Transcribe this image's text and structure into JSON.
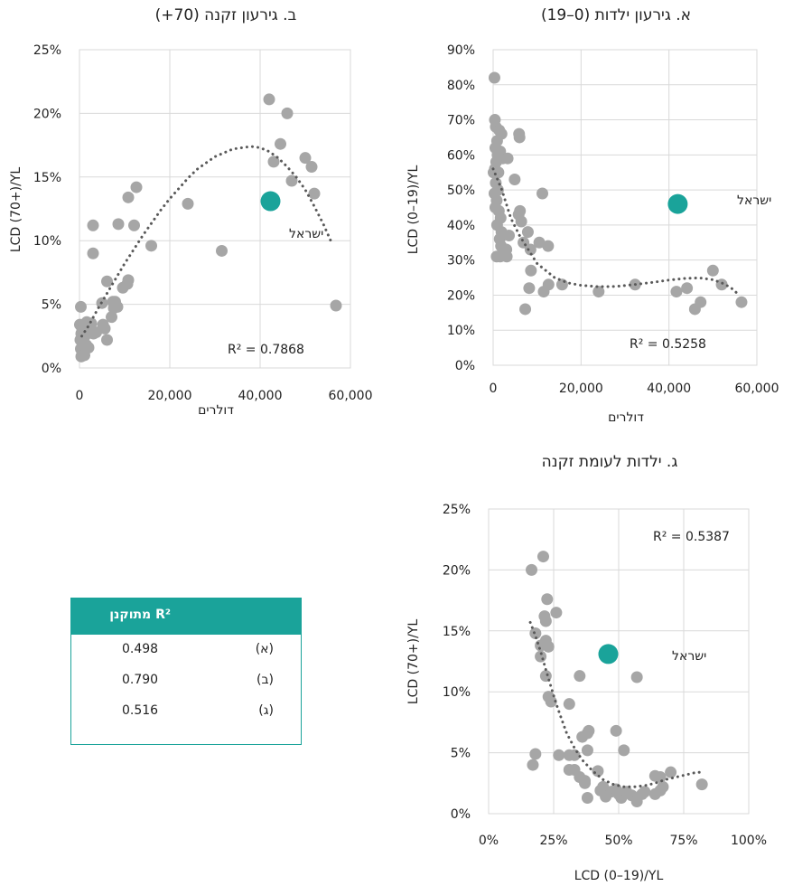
{
  "colors": {
    "points": "#a6a6a6",
    "highlight": "#1aa39a",
    "trend": "#595959",
    "grid": "#d9d9d9"
  },
  "chart_data": [
    {
      "id": "a",
      "type": "scatter",
      "title": "א. גירעון ילדות (0–19)",
      "xlabel": "דולרים",
      "ylabel": "LCD (0–19)/YL",
      "xlim": [
        0,
        60000
      ],
      "ylim": [
        0,
        0.9
      ],
      "xticks": [
        "0",
        "20,000",
        "40,000",
        "60,000"
      ],
      "yticks": [
        "0%",
        "10%",
        "20%",
        "30%",
        "40%",
        "50%",
        "60%",
        "70%",
        "80%",
        "90%"
      ],
      "grid": true,
      "r2_label": "R² = 0.5258",
      "highlight": {
        "label": "ישראל",
        "x": 42000,
        "y": 0.46
      },
      "points": [
        [
          300,
          0.82
        ],
        [
          400,
          0.7
        ],
        [
          600,
          0.68
        ],
        [
          900,
          0.64
        ],
        [
          1400,
          0.67
        ],
        [
          1900,
          0.66
        ],
        [
          500,
          0.62
        ],
        [
          1000,
          0.6
        ],
        [
          1600,
          0.61
        ],
        [
          2200,
          0.59
        ],
        [
          700,
          0.58
        ],
        [
          400,
          0.56
        ],
        [
          100,
          0.55
        ],
        [
          1200,
          0.55
        ],
        [
          3300,
          0.59
        ],
        [
          600,
          0.52
        ],
        [
          1100,
          0.5
        ],
        [
          300,
          0.49
        ],
        [
          800,
          0.47
        ],
        [
          500,
          0.45
        ],
        [
          1300,
          0.44
        ],
        [
          1700,
          0.42
        ],
        [
          900,
          0.4
        ],
        [
          1900,
          0.38
        ],
        [
          1500,
          0.36
        ],
        [
          3600,
          0.37
        ],
        [
          5800,
          0.43
        ],
        [
          6100,
          0.44
        ],
        [
          4900,
          0.53
        ],
        [
          5900,
          0.66
        ],
        [
          6000,
          0.65
        ],
        [
          6900,
          0.35
        ],
        [
          6400,
          0.41
        ],
        [
          7900,
          0.38
        ],
        [
          8500,
          0.33
        ],
        [
          10500,
          0.35
        ],
        [
          12500,
          0.34
        ],
        [
          11200,
          0.49
        ],
        [
          3000,
          0.33
        ],
        [
          1800,
          0.34
        ],
        [
          800,
          0.31
        ],
        [
          1600,
          0.31
        ],
        [
          3100,
          0.31
        ],
        [
          8600,
          0.27
        ],
        [
          8200,
          0.22
        ],
        [
          7300,
          0.16
        ],
        [
          11500,
          0.21
        ],
        [
          12600,
          0.23
        ],
        [
          15700,
          0.23
        ],
        [
          24000,
          0.21
        ],
        [
          32300,
          0.23
        ],
        [
          41700,
          0.21
        ],
        [
          44100,
          0.22
        ],
        [
          47200,
          0.18
        ],
        [
          45900,
          0.16
        ],
        [
          50000,
          0.27
        ],
        [
          52000,
          0.23
        ],
        [
          56500,
          0.18
        ]
      ],
      "trendline": [
        [
          0,
          0.56
        ],
        [
          2000,
          0.5
        ],
        [
          4000,
          0.42
        ],
        [
          6000,
          0.37
        ],
        [
          8000,
          0.33
        ],
        [
          10000,
          0.29
        ],
        [
          12000,
          0.27
        ],
        [
          14000,
          0.25
        ],
        [
          17000,
          0.235
        ],
        [
          20000,
          0.228
        ],
        [
          24000,
          0.224
        ],
        [
          28000,
          0.225
        ],
        [
          32000,
          0.23
        ],
        [
          36000,
          0.236
        ],
        [
          40000,
          0.243
        ],
        [
          44000,
          0.248
        ],
        [
          47000,
          0.249
        ],
        [
          50000,
          0.244
        ],
        [
          52000,
          0.235
        ],
        [
          54000,
          0.222
        ],
        [
          56000,
          0.2
        ]
      ]
    },
    {
      "id": "b",
      "type": "scatter",
      "title": "ב. גירעון זקנה (70+)",
      "xlabel": "דולרים",
      "ylabel": "LCD (70+)/YL",
      "xlim": [
        0,
        60000
      ],
      "ylim": [
        0,
        0.25
      ],
      "xticks": [
        "0",
        "20,000",
        "40,000",
        "60,000"
      ],
      "yticks": [
        "0%",
        "5%",
        "10%",
        "15%",
        "20%",
        "25%"
      ],
      "grid": true,
      "r2_label": "R² = 0.7868",
      "highlight": {
        "label": "ישראל",
        "x": 42300,
        "y": 0.131
      },
      "points": [
        [
          300,
          0.048
        ],
        [
          100,
          0.034
        ],
        [
          600,
          0.03
        ],
        [
          1000,
          0.032
        ],
        [
          400,
          0.027
        ],
        [
          1200,
          0.025
        ],
        [
          200,
          0.022
        ],
        [
          700,
          0.019
        ],
        [
          1500,
          0.018
        ],
        [
          2000,
          0.016
        ],
        [
          300,
          0.015
        ],
        [
          600,
          0.013
        ],
        [
          1100,
          0.01
        ],
        [
          400,
          0.009
        ],
        [
          1600,
          0.036
        ],
        [
          1900,
          0.031
        ],
        [
          2600,
          0.035
        ],
        [
          3100,
          0.027
        ],
        [
          3700,
          0.028
        ],
        [
          5000,
          0.051
        ],
        [
          5200,
          0.034
        ],
        [
          5600,
          0.031
        ],
        [
          6100,
          0.022
        ],
        [
          6100,
          0.068
        ],
        [
          7100,
          0.04
        ],
        [
          7400,
          0.052
        ],
        [
          7600,
          0.047
        ],
        [
          7900,
          0.052
        ],
        [
          8400,
          0.048
        ],
        [
          9600,
          0.063
        ],
        [
          10600,
          0.066
        ],
        [
          10800,
          0.069
        ],
        [
          3000,
          0.112
        ],
        [
          3000,
          0.09
        ],
        [
          8600,
          0.113
        ],
        [
          10800,
          0.134
        ],
        [
          12100,
          0.112
        ],
        [
          12600,
          0.142
        ],
        [
          15900,
          0.096
        ],
        [
          24000,
          0.129
        ],
        [
          31500,
          0.092
        ],
        [
          42000,
          0.211
        ],
        [
          43000,
          0.162
        ],
        [
          44500,
          0.176
        ],
        [
          46000,
          0.2
        ],
        [
          47000,
          0.147
        ],
        [
          50000,
          0.165
        ],
        [
          51400,
          0.158
        ],
        [
          52000,
          0.137
        ],
        [
          56800,
          0.049
        ]
      ],
      "trendline": [
        [
          500,
          0.025
        ],
        [
          2000,
          0.033
        ],
        [
          4000,
          0.046
        ],
        [
          6000,
          0.058
        ],
        [
          8000,
          0.07
        ],
        [
          10000,
          0.082
        ],
        [
          12000,
          0.093
        ],
        [
          14000,
          0.104
        ],
        [
          16000,
          0.114
        ],
        [
          18000,
          0.124
        ],
        [
          20000,
          0.133
        ],
        [
          22000,
          0.141
        ],
        [
          24000,
          0.149
        ],
        [
          26000,
          0.156
        ],
        [
          28000,
          0.161
        ],
        [
          30000,
          0.166
        ],
        [
          32000,
          0.169
        ],
        [
          34000,
          0.172
        ],
        [
          36000,
          0.173
        ],
        [
          38000,
          0.174
        ],
        [
          40000,
          0.173
        ],
        [
          42000,
          0.17
        ],
        [
          44000,
          0.165
        ],
        [
          46000,
          0.158
        ],
        [
          48000,
          0.15
        ],
        [
          50000,
          0.14
        ],
        [
          52000,
          0.127
        ],
        [
          54000,
          0.113
        ],
        [
          56000,
          0.097
        ]
      ]
    },
    {
      "id": "c",
      "type": "scatter",
      "title": "ג. ילדות לעומת זקנה",
      "xlabel": "LCD (0–19)/YL",
      "ylabel": "LCD (70+)/YL",
      "xlim": [
        0,
        1
      ],
      "ylim": [
        0,
        0.25
      ],
      "xticks": [
        "0%",
        "25%",
        "50%",
        "75%",
        "100%"
      ],
      "yticks": [
        "0%",
        "5%",
        "10%",
        "15%",
        "20%",
        "25%"
      ],
      "grid": true,
      "r2_label": "R² = 0.5387",
      "highlight": {
        "label": "ישראל",
        "x": 0.46,
        "y": 0.131
      },
      "points": [
        [
          0.165,
          0.2
        ],
        [
          0.21,
          0.211
        ],
        [
          0.215,
          0.162
        ],
        [
          0.22,
          0.158
        ],
        [
          0.225,
          0.176
        ],
        [
          0.26,
          0.165
        ],
        [
          0.18,
          0.148
        ],
        [
          0.2,
          0.138
        ],
        [
          0.2,
          0.129
        ],
        [
          0.22,
          0.142
        ],
        [
          0.23,
          0.137
        ],
        [
          0.22,
          0.113
        ],
        [
          0.23,
          0.096
        ],
        [
          0.24,
          0.092
        ],
        [
          0.18,
          0.049
        ],
        [
          0.17,
          0.04
        ],
        [
          0.27,
          0.048
        ],
        [
          0.31,
          0.048
        ],
        [
          0.33,
          0.048
        ],
        [
          0.35,
          0.113
        ],
        [
          0.31,
          0.09
        ],
        [
          0.36,
          0.063
        ],
        [
          0.38,
          0.066
        ],
        [
          0.385,
          0.068
        ],
        [
          0.49,
          0.068
        ],
        [
          0.38,
          0.052
        ],
        [
          0.52,
          0.052
        ],
        [
          0.57,
          0.112
        ],
        [
          0.31,
          0.036
        ],
        [
          0.33,
          0.036
        ],
        [
          0.35,
          0.03
        ],
        [
          0.37,
          0.027
        ],
        [
          0.37,
          0.025
        ],
        [
          0.42,
          0.035
        ],
        [
          0.44,
          0.022
        ],
        [
          0.43,
          0.019
        ],
        [
          0.47,
          0.018
        ],
        [
          0.49,
          0.02
        ],
        [
          0.5,
          0.016
        ],
        [
          0.51,
          0.013
        ],
        [
          0.53,
          0.018
        ],
        [
          0.55,
          0.015
        ],
        [
          0.57,
          0.01
        ],
        [
          0.59,
          0.016
        ],
        [
          0.6,
          0.018
        ],
        [
          0.64,
          0.016
        ],
        [
          0.66,
          0.019
        ],
        [
          0.67,
          0.022
        ],
        [
          0.64,
          0.031
        ],
        [
          0.66,
          0.03
        ],
        [
          0.7,
          0.034
        ],
        [
          0.82,
          0.024
        ],
        [
          0.38,
          0.013
        ],
        [
          0.45,
          0.014
        ]
      ],
      "trendline": [
        [
          0.16,
          0.157
        ],
        [
          0.18,
          0.146
        ],
        [
          0.2,
          0.133
        ],
        [
          0.22,
          0.118
        ],
        [
          0.24,
          0.104
        ],
        [
          0.26,
          0.09
        ],
        [
          0.28,
          0.078
        ],
        [
          0.3,
          0.066
        ],
        [
          0.33,
          0.054
        ],
        [
          0.36,
          0.044
        ],
        [
          0.4,
          0.035
        ],
        [
          0.44,
          0.028
        ],
        [
          0.48,
          0.024
        ],
        [
          0.52,
          0.022
        ],
        [
          0.56,
          0.022
        ],
        [
          0.6,
          0.023
        ],
        [
          0.64,
          0.025
        ],
        [
          0.68,
          0.028
        ],
        [
          0.72,
          0.03
        ],
        [
          0.76,
          0.032
        ],
        [
          0.8,
          0.034
        ],
        [
          0.82,
          0.034
        ]
      ]
    }
  ],
  "r2_table": {
    "header": "R² מתוקנן",
    "rows": [
      {
        "label": "(א)",
        "value": "0.498"
      },
      {
        "label": "(ב)",
        "value": "0.790"
      },
      {
        "label": "(ג)",
        "value": "0.516"
      }
    ]
  }
}
